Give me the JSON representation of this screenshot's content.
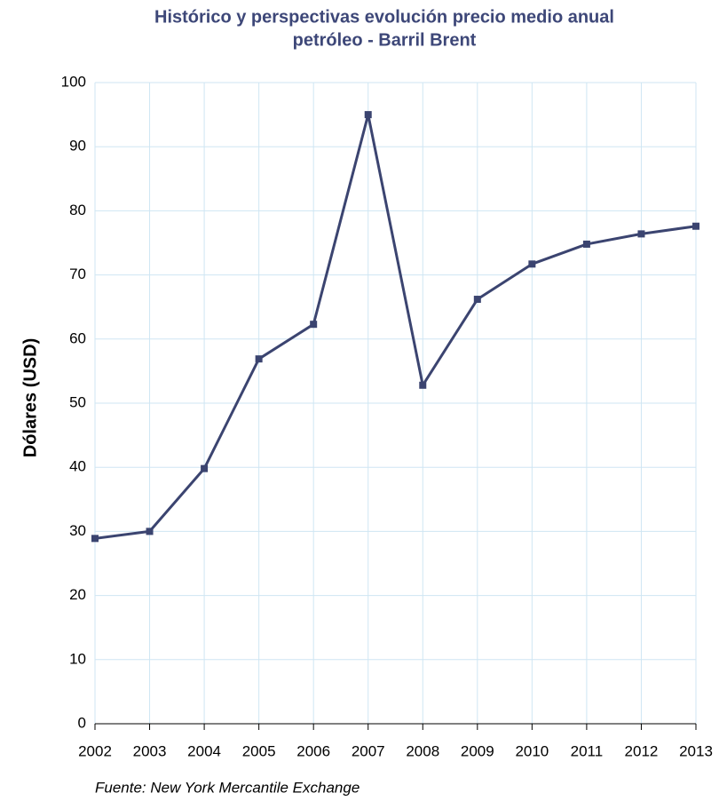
{
  "chart_data": {
    "type": "line",
    "title": [
      "Histórico y perspectivas evolución precio medio anual",
      "petróleo - Barril Brent"
    ],
    "y_label": "Dólares (USD)",
    "source": "Fuente: New York Mercantile Exchange",
    "x": [
      2002,
      2003,
      2004,
      2005,
      2006,
      2007,
      2008,
      2009,
      2010,
      2011,
      2012,
      2013
    ],
    "series": [
      {
        "name": "Barril Brent",
        "color": "#3b4470",
        "values": [
          28.9,
          30.0,
          39.8,
          56.9,
          62.3,
          95.0,
          52.8,
          66.2,
          71.7,
          74.8,
          76.4,
          77.6
        ]
      }
    ],
    "xlim": [
      2002,
      2013
    ],
    "xticks": [
      2002,
      2003,
      2004,
      2005,
      2006,
      2007,
      2008,
      2009,
      2010,
      2011,
      2012,
      2013
    ],
    "ylim": [
      0,
      100
    ],
    "yticks": [
      0,
      10,
      20,
      30,
      40,
      50,
      60,
      70,
      80,
      90,
      100
    ],
    "grid": true
  }
}
